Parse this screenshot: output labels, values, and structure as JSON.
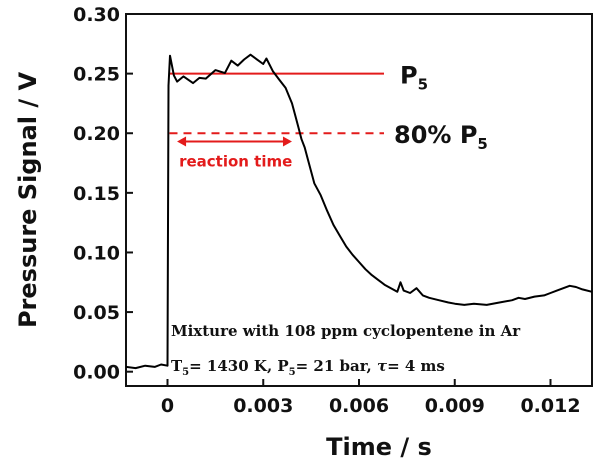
{
  "chart_data": {
    "type": "line",
    "xlabel": "Time / s",
    "ylabel": "Pressure Signal / V",
    "xlim": [
      -0.0013,
      0.0133
    ],
    "ylim": [
      -0.012,
      0.3
    ],
    "xticks": [
      "0",
      "0.003",
      "0.006",
      "0.009",
      "0.012"
    ],
    "xtick_values": [
      0,
      0.003,
      0.006,
      0.009,
      0.012
    ],
    "yticks": [
      "0.00",
      "0.05",
      "0.10",
      "0.15",
      "0.20",
      "0.25",
      "0.30"
    ],
    "ytick_values": [
      0,
      0.05,
      0.1,
      0.15,
      0.2,
      0.25,
      0.3
    ],
    "grid": false,
    "series": [
      {
        "color": "#000000",
        "x": [
          -0.0013,
          -0.001,
          -0.0007,
          -0.0004,
          -0.0002,
          0.0,
          3e-05,
          8e-05,
          0.0002,
          0.0003,
          0.0005,
          0.0008,
          0.001,
          0.0012,
          0.0015,
          0.0018,
          0.002,
          0.0022,
          0.0024,
          0.0026,
          0.0028,
          0.003,
          0.0031,
          0.0033,
          0.0035,
          0.0037,
          0.0039,
          0.004,
          0.0041,
          0.0042,
          0.0043,
          0.0044,
          0.0045,
          0.0046,
          0.0048,
          0.005,
          0.0052,
          0.0054,
          0.0056,
          0.0058,
          0.006,
          0.0062,
          0.0064,
          0.0066,
          0.0068,
          0.007,
          0.0072,
          0.0073,
          0.0074,
          0.0076,
          0.0078,
          0.008,
          0.0082,
          0.0085,
          0.0088,
          0.009,
          0.0093,
          0.0096,
          0.01,
          0.0104,
          0.0108,
          0.011,
          0.0112,
          0.0115,
          0.0118,
          0.012,
          0.0122,
          0.0124,
          0.0126,
          0.0128,
          0.013,
          0.0133
        ],
        "y": [
          0.004,
          0.003,
          0.005,
          0.004,
          0.006,
          0.005,
          0.24,
          0.265,
          0.25,
          0.247,
          0.253,
          0.248,
          0.252,
          0.25,
          0.255,
          0.25,
          0.258,
          0.252,
          0.256,
          0.26,
          0.257,
          0.255,
          0.262,
          0.254,
          0.245,
          0.238,
          0.225,
          0.215,
          0.205,
          0.195,
          0.188,
          0.178,
          0.168,
          0.158,
          0.148,
          0.135,
          0.123,
          0.114,
          0.105,
          0.098,
          0.092,
          0.086,
          0.081,
          0.077,
          0.073,
          0.07,
          0.067,
          0.075,
          0.068,
          0.066,
          0.07,
          0.064,
          0.062,
          0.06,
          0.058,
          0.057,
          0.056,
          0.057,
          0.056,
          0.058,
          0.06,
          0.062,
          0.061,
          0.063,
          0.064,
          0.066,
          0.068,
          0.07,
          0.072,
          0.071,
          0.069,
          0.067
        ]
      }
    ],
    "reference_lines": [
      {
        "y": 0.25,
        "style": "solid",
        "color": "#e31b1b",
        "x_range": [
          0,
          0.0041
        ],
        "label_main": "P",
        "label_sub": "5",
        "label_prefix": ""
      },
      {
        "y": 0.2,
        "style": "dashed",
        "color": "#e31b1b",
        "x_range": [
          0,
          0.0041
        ],
        "label_main": "P",
        "label_sub": "5",
        "label_prefix": "80% "
      }
    ],
    "reaction_time": {
      "label": "reaction time",
      "y": 0.178,
      "x_start": 0.0003,
      "x_end": 0.0039,
      "color": "#e31b1b"
    },
    "annotation": {
      "line1": "Mixture with 108 ppm  cyclopentene in Ar",
      "t_main": "T",
      "t_sub": "5",
      "t_value": "= 1430 K, ",
      "p_main": "P",
      "p_sub": "5",
      "p_value": "= 21 bar, ",
      "tau": "τ",
      "tau_value": "= 4 ms"
    }
  }
}
